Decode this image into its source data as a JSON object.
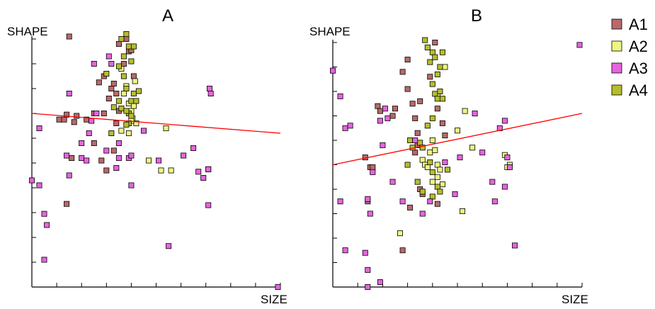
{
  "colors": {
    "A1": "#b8696a",
    "A2": "#eef580",
    "A3": "#e664df",
    "A4": "#b5bd2c",
    "trend": "#ff0000"
  },
  "legend": [
    {
      "name": "A1",
      "color": "#b8696a"
    },
    {
      "name": "A2",
      "color": "#eef580"
    },
    {
      "name": "A3",
      "color": "#e664df"
    },
    {
      "name": "A4",
      "color": "#b5bd2c"
    }
  ],
  "chart_data": [
    {
      "type": "scatter",
      "title": "A",
      "xlabel": "SIZE",
      "ylabel": "SHAPE",
      "xlim": [
        0,
        10
      ],
      "ylim": [
        0,
        10
      ],
      "xticks": 10,
      "yticks": 10,
      "grid": false,
      "trendline": {
        "x": [
          0,
          10
        ],
        "y": [
          7.0,
          6.2
        ]
      },
      "series": [
        {
          "name": "A1",
          "values": [
            [
              1.5,
              10.1
            ],
            [
              1.1,
              6.75
            ],
            [
              1.3,
              6.75
            ],
            [
              1.4,
              6.95
            ],
            [
              1.7,
              6.65
            ],
            [
              1.8,
              6.9
            ],
            [
              2.2,
              6.75
            ],
            [
              2.5,
              7.0
            ],
            [
              2.7,
              8.25
            ],
            [
              2.9,
              8.5
            ],
            [
              3.1,
              7.6
            ],
            [
              3.2,
              8.0
            ],
            [
              3.3,
              8.2
            ],
            [
              3.4,
              7.8
            ],
            [
              3.5,
              9.8
            ],
            [
              3.7,
              9.0
            ],
            [
              3.8,
              10.0
            ],
            [
              3.9,
              9.5
            ],
            [
              4.0,
              9.55
            ],
            [
              4.1,
              8.5
            ],
            [
              2.9,
              7.0
            ],
            [
              3.4,
              6.6
            ],
            [
              3.5,
              7.1
            ],
            [
              2.5,
              5.8
            ],
            [
              2.8,
              5.1
            ],
            [
              3.0,
              4.7
            ],
            [
              3.3,
              5.5
            ],
            [
              1.6,
              5.2
            ],
            [
              1.4,
              3.35
            ]
          ]
        },
        {
          "name": "A2",
          "values": [
            [
              3.6,
              8.8
            ],
            [
              3.7,
              7.8
            ],
            [
              3.8,
              8.1
            ],
            [
              3.9,
              7.4
            ],
            [
              4.0,
              7.1
            ],
            [
              4.05,
              6.8
            ],
            [
              4.1,
              7.3
            ],
            [
              4.15,
              8.3
            ],
            [
              4.2,
              6.6
            ],
            [
              3.6,
              6.3
            ],
            [
              3.9,
              6.2
            ],
            [
              4.0,
              6.7
            ],
            [
              4.7,
              5.1
            ],
            [
              5.2,
              4.7
            ],
            [
              5.6,
              4.7
            ],
            [
              5.4,
              6.4
            ],
            [
              7.1,
              4.75
            ]
          ]
        },
        {
          "name": "A4",
          "values": [
            [
              3.0,
              8.6
            ],
            [
              3.5,
              8.9
            ],
            [
              3.6,
              10.0
            ],
            [
              3.7,
              9.3
            ],
            [
              3.8,
              10.2
            ],
            [
              3.9,
              9.7
            ],
            [
              4.0,
              9.1
            ],
            [
              4.1,
              9.7
            ],
            [
              3.7,
              8.5
            ],
            [
              3.8,
              8.0
            ],
            [
              3.9,
              7.0
            ],
            [
              4.0,
              7.5
            ],
            [
              4.1,
              7.8
            ],
            [
              4.2,
              7.5
            ],
            [
              4.3,
              7.9
            ],
            [
              3.6,
              7.2
            ],
            [
              3.8,
              7.1
            ],
            [
              3.9,
              6.6
            ],
            [
              3.5,
              7.5
            ],
            [
              3.3,
              7.25
            ],
            [
              3.2,
              6.2
            ],
            [
              3.8,
              6.55
            ],
            [
              4.0,
              6.9
            ]
          ]
        },
        {
          "name": "A3",
          "values": [
            [
              0.0,
              4.3
            ],
            [
              0.3,
              4.1
            ],
            [
              0.5,
              2.95
            ],
            [
              0.6,
              2.5
            ],
            [
              0.5,
              1.1
            ],
            [
              1.5,
              4.5
            ],
            [
              1.4,
              5.3
            ],
            [
              1.5,
              7.8
            ],
            [
              2.0,
              5.8
            ],
            [
              2.3,
              6.2
            ],
            [
              2.6,
              7.0
            ],
            [
              2.4,
              6.7
            ],
            [
              3.0,
              5.5
            ],
            [
              3.5,
              5.2
            ],
            [
              3.4,
              4.8
            ],
            [
              3.9,
              5.2
            ],
            [
              4.0,
              5.3
            ],
            [
              4.0,
              4.1
            ],
            [
              4.5,
              6.3
            ],
            [
              5.1,
              5.1
            ],
            [
              5.5,
              1.65
            ],
            [
              6.1,
              5.3
            ],
            [
              6.5,
              5.6
            ],
            [
              6.7,
              4.65
            ],
            [
              6.9,
              4.4
            ],
            [
              7.1,
              4.75
            ],
            [
              7.15,
              8.0
            ],
            [
              7.1,
              3.3
            ],
            [
              7.2,
              7.8
            ],
            [
              9.9,
              0.0
            ],
            [
              2.5,
              9.0
            ],
            [
              3.1,
              9.3
            ],
            [
              3.2,
              9.0
            ],
            [
              2.0,
              5.2
            ],
            [
              2.2,
              5.1
            ],
            [
              0.3,
              6.4
            ],
            [
              3.5,
              5.8
            ]
          ]
        }
      ]
    },
    {
      "type": "scatter",
      "title": "B",
      "xlabel": "SIZE",
      "ylabel": "SHAPE",
      "xlim": [
        0,
        10
      ],
      "ylim": [
        0,
        10
      ],
      "xticks": 10,
      "yticks": 10,
      "grid": false,
      "trendline": {
        "x": [
          0,
          10
        ],
        "y": [
          5.0,
          7.1
        ]
      },
      "series": [
        {
          "name": "A1",
          "values": [
            [
              1.3,
              5.3
            ],
            [
              1.5,
              4.9
            ],
            [
              1.8,
              7.4
            ],
            [
              1.9,
              7.2
            ],
            [
              2.4,
              7.0
            ],
            [
              2.5,
              7.3
            ],
            [
              2.8,
              8.8
            ],
            [
              3.0,
              9.3
            ],
            [
              3.0,
              8.1
            ],
            [
              3.2,
              7.5
            ],
            [
              3.3,
              6.9
            ],
            [
              3.4,
              6.3
            ],
            [
              3.5,
              7.6
            ],
            [
              3.9,
              8.6
            ],
            [
              4.1,
              10.0
            ],
            [
              4.2,
              7.3
            ],
            [
              4.4,
              6.7
            ],
            [
              4.5,
              6.2
            ],
            [
              3.3,
              5.5
            ],
            [
              3.4,
              5.8
            ],
            [
              3.5,
              4.0
            ],
            [
              3.6,
              3.8
            ],
            [
              3.1,
              3.25
            ],
            [
              2.8,
              1.5
            ],
            [
              1.4,
              3.5
            ],
            [
              1.6,
              4.9
            ],
            [
              4.2,
              3.4
            ]
          ]
        },
        {
          "name": "A2",
          "values": [
            [
              3.6,
              5.2
            ],
            [
              3.7,
              5.0
            ],
            [
              3.8,
              4.9
            ],
            [
              3.9,
              5.5
            ],
            [
              4.0,
              6.0
            ],
            [
              4.1,
              5.6
            ],
            [
              4.2,
              5.0
            ],
            [
              4.3,
              4.8
            ],
            [
              4.0,
              4.3
            ],
            [
              4.2,
              4.5
            ],
            [
              4.4,
              4.2
            ],
            [
              5.0,
              6.4
            ],
            [
              5.6,
              5.7
            ],
            [
              7.1,
              5.0
            ],
            [
              5.3,
              7.2
            ],
            [
              2.7,
              2.2
            ],
            [
              4.2,
              7.8
            ],
            [
              4.5,
              9.0
            ],
            [
              5.2,
              3.1
            ],
            [
              6.9,
              5.4
            ],
            [
              7.0,
              4.9
            ]
          ]
        },
        {
          "name": "A4",
          "values": [
            [
              3.7,
              10.1
            ],
            [
              3.8,
              9.8
            ],
            [
              3.9,
              9.2
            ],
            [
              4.0,
              9.6
            ],
            [
              4.1,
              9.4
            ],
            [
              4.2,
              8.7
            ],
            [
              4.3,
              9.0
            ],
            [
              4.4,
              9.6
            ],
            [
              4.0,
              8.3
            ],
            [
              4.1,
              7.9
            ],
            [
              4.2,
              7.7
            ],
            [
              4.3,
              8.0
            ],
            [
              4.4,
              7.7
            ],
            [
              3.8,
              6.6
            ],
            [
              4.0,
              6.9
            ],
            [
              3.5,
              5.9
            ],
            [
              3.6,
              5.7
            ],
            [
              3.9,
              5.1
            ],
            [
              4.0,
              4.7
            ],
            [
              4.2,
              4.1
            ],
            [
              4.3,
              3.9
            ],
            [
              3.6,
              3.9
            ],
            [
              3.4,
              4.3
            ],
            [
              3.0,
              5.0
            ],
            [
              3.1,
              6.0
            ],
            [
              3.2,
              5.7
            ],
            [
              4.6,
              4.8
            ],
            [
              4.0,
              3.7
            ]
          ]
        },
        {
          "name": "A3",
          "values": [
            [
              0.0,
              8.85
            ],
            [
              0.3,
              7.8
            ],
            [
              0.5,
              6.5
            ],
            [
              0.7,
              6.6
            ],
            [
              0.3,
              3.5
            ],
            [
              0.5,
              1.5
            ],
            [
              1.3,
              1.4
            ],
            [
              1.4,
              3.6
            ],
            [
              1.5,
              3.0
            ],
            [
              1.4,
              0.0
            ],
            [
              1.6,
              4.7
            ],
            [
              1.9,
              6.8
            ],
            [
              1.9,
              0.2
            ],
            [
              2.0,
              5.8
            ],
            [
              2.4,
              4.3
            ],
            [
              2.8,
              3.5
            ],
            [
              3.6,
              3.0
            ],
            [
              3.9,
              3.5
            ],
            [
              4.5,
              5.1
            ],
            [
              4.9,
              3.8
            ],
            [
              5.1,
              5.3
            ],
            [
              5.7,
              7.1
            ],
            [
              6.0,
              5.5
            ],
            [
              6.4,
              4.3
            ],
            [
              6.5,
              3.5
            ],
            [
              6.7,
              6.5
            ],
            [
              6.9,
              6.8
            ],
            [
              7.0,
              5.3
            ],
            [
              7.1,
              4.9
            ],
            [
              7.3,
              1.7
            ],
            [
              6.9,
              4.1
            ],
            [
              9.9,
              9.9
            ],
            [
              1.4,
              0.7
            ],
            [
              2.2,
              6.9
            ],
            [
              2.1,
              7.3
            ],
            [
              3.3,
              6.0
            ]
          ]
        }
      ]
    }
  ]
}
